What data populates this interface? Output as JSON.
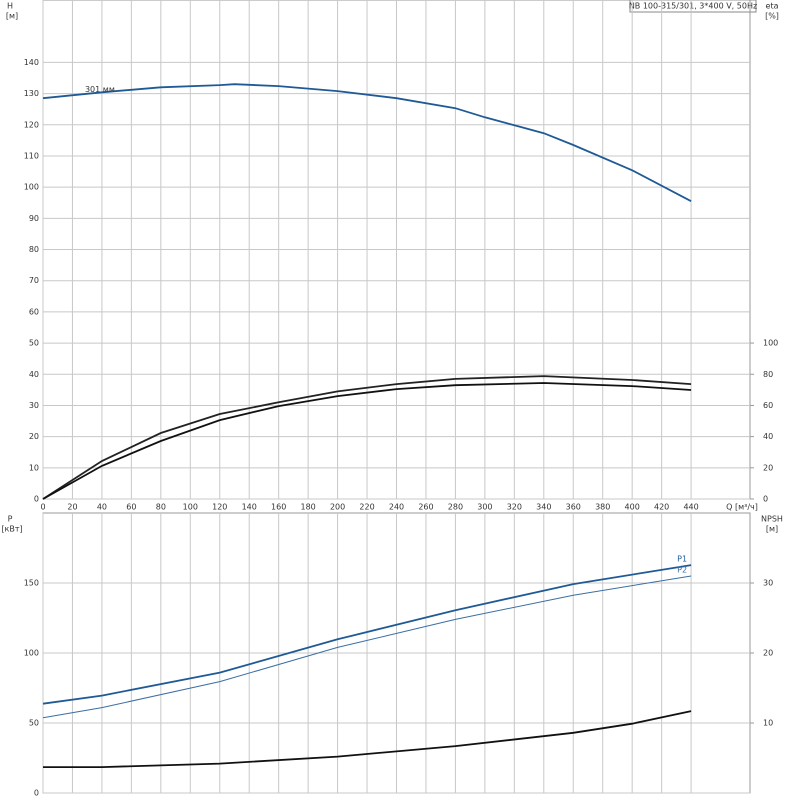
{
  "chart_data": [
    {
      "type": "line",
      "title": "NB 100-315/301, 3*400 V, 50Hz",
      "xlabel": "Q [м³/ч]",
      "ylabel": "H",
      "yunit": "[м]",
      "y2label": "eta",
      "y2unit": "[%]",
      "xlim": [
        0,
        480
      ],
      "xticks": [
        0,
        20,
        40,
        60,
        80,
        100,
        120,
        140,
        160,
        180,
        200,
        220,
        240,
        260,
        280,
        300,
        320,
        340,
        360,
        380,
        400,
        420,
        440
      ],
      "ylim": [
        0,
        160
      ],
      "yticks": [
        0,
        10,
        20,
        30,
        40,
        50,
        60,
        70,
        80,
        90,
        100,
        110,
        120,
        130,
        140
      ],
      "y2lim": [
        0,
        320
      ],
      "y2ticks": [
        0,
        20,
        40,
        60,
        80,
        100
      ],
      "grid": true,
      "series": [
        {
          "name": "301 мм",
          "color": "#1f5a96",
          "x": [
            0,
            40,
            80,
            120,
            130,
            160,
            200,
            240,
            280,
            300,
            340,
            360,
            400,
            440
          ],
          "values": [
            128.5,
            130.4,
            132,
            132.7,
            133,
            132.4,
            130.8,
            128.5,
            125.3,
            122.4,
            117.3,
            113.5,
            105.4,
            95.5
          ]
        },
        {
          "color": "#222222",
          "axis": "y2",
          "x": [
            0,
            40,
            80,
            120,
            160,
            200,
            240,
            280,
            340,
            400,
            440
          ],
          "values": [
            0,
            24.4,
            42.3,
            54.5,
            62,
            69,
            73.7,
            77,
            78.8,
            76.3,
            73.7
          ]
        },
        {
          "color": "#111111",
          "axis": "y2",
          "x": [
            0,
            40,
            80,
            120,
            160,
            200,
            240,
            280,
            340,
            400,
            440
          ],
          "values": [
            0,
            21.2,
            37.2,
            50.6,
            59.6,
            66,
            70.5,
            73,
            74.4,
            72.4,
            69.9
          ]
        }
      ]
    },
    {
      "type": "line",
      "ylabel": "P",
      "yunit": "[кВт]",
      "y2label": "NPSH",
      "y2unit": "[м]",
      "xlim": [
        0,
        480
      ],
      "ylim": [
        0,
        200
      ],
      "yticks": [
        0,
        50,
        100,
        150
      ],
      "y2lim": [
        0,
        40
      ],
      "y2ticks": [
        10,
        20,
        30
      ],
      "grid": true,
      "series": [
        {
          "name": "P1",
          "color": "#1f5a96",
          "x": [
            0,
            40,
            120,
            200,
            280,
            360,
            440
          ],
          "values": [
            63.8,
            69.6,
            86,
            109.8,
            130.6,
            149.2,
            162.8
          ]
        },
        {
          "name": "P2",
          "color": "#3a6ea5",
          "x": [
            0,
            40,
            120,
            200,
            280,
            360,
            440
          ],
          "values": [
            53.8,
            61,
            79.6,
            104,
            124,
            141.3,
            155
          ]
        },
        {
          "color": "#111111",
          "axis": "y2",
          "x": [
            0,
            40,
            120,
            200,
            280,
            360,
            400,
            440
          ],
          "values": [
            3.7,
            3.7,
            4.2,
            5.2,
            6.7,
            8.6,
            9.9,
            11.7
          ]
        }
      ]
    }
  ]
}
